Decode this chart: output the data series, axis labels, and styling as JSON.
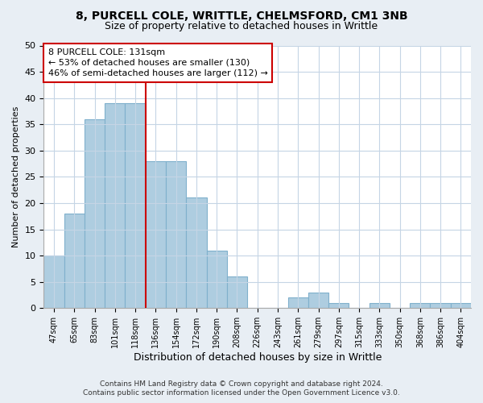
{
  "title1": "8, PURCELL COLE, WRITTLE, CHELMSFORD, CM1 3NB",
  "title2": "Size of property relative to detached houses in Writtle",
  "xlabel": "Distribution of detached houses by size in Writtle",
  "ylabel": "Number of detached properties",
  "categories": [
    "47sqm",
    "65sqm",
    "83sqm",
    "101sqm",
    "118sqm",
    "136sqm",
    "154sqm",
    "172sqm",
    "190sqm",
    "208sqm",
    "226sqm",
    "243sqm",
    "261sqm",
    "279sqm",
    "297sqm",
    "315sqm",
    "333sqm",
    "350sqm",
    "368sqm",
    "386sqm",
    "404sqm"
  ],
  "values": [
    10,
    18,
    36,
    39,
    39,
    28,
    28,
    21,
    11,
    6,
    0,
    0,
    2,
    3,
    1,
    0,
    1,
    0,
    1,
    1,
    1
  ],
  "bar_color": "#aecde0",
  "bar_edge_color": "#7fb0cc",
  "vline_color": "#cc0000",
  "annotation_text_line1": "8 PURCELL COLE: 131sqm",
  "annotation_text_line2": "← 53% of detached houses are smaller (130)",
  "annotation_text_line3": "46% of semi-detached houses are larger (112) →",
  "ylim": [
    0,
    50
  ],
  "yticks": [
    0,
    5,
    10,
    15,
    20,
    25,
    30,
    35,
    40,
    45,
    50
  ],
  "footer1": "Contains HM Land Registry data © Crown copyright and database right 2024.",
  "footer2": "Contains public sector information licensed under the Open Government Licence v3.0.",
  "bg_color": "#e8eef4",
  "plot_bg_color": "#ffffff",
  "grid_color": "#c5d5e5",
  "title1_fontsize": 10,
  "title2_fontsize": 9,
  "xlabel_fontsize": 9,
  "ylabel_fontsize": 8,
  "tick_fontsize": 8,
  "xtick_fontsize": 7,
  "footer_fontsize": 6.5,
  "annot_fontsize": 8
}
